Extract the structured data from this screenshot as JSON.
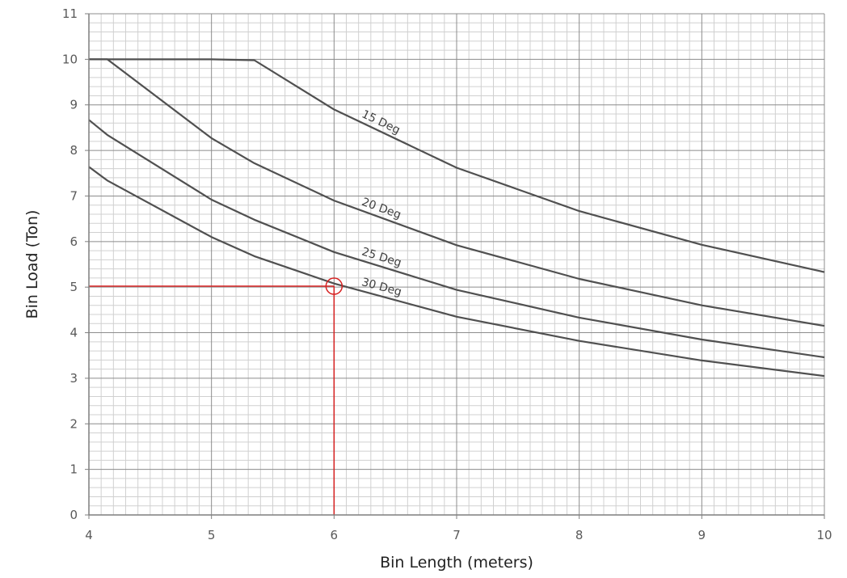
{
  "chart_data": {
    "type": "line",
    "title": "",
    "xlabel": "Bin Length (meters)",
    "ylabel": "Bin Load (Ton)",
    "xlim": [
      4,
      10
    ],
    "ylim": [
      0,
      11
    ],
    "x_ticks": [
      "4",
      "5",
      "6",
      "7",
      "8",
      "9",
      "10"
    ],
    "y_ticks": [
      "0",
      "1",
      "2",
      "3",
      "4",
      "5",
      "6",
      "7",
      "8",
      "9",
      "10",
      "11"
    ],
    "grid": {
      "major": true,
      "minor": true,
      "x_minor_step": 0.1,
      "y_minor_step": 0.2
    },
    "series": [
      {
        "name": "15 Deg",
        "color": "#505050",
        "x": [
          4.0,
          4.2,
          5.0,
          5.35,
          6.0,
          7.0,
          8.0,
          9.0,
          10.0
        ],
        "y": [
          10.0,
          10.0,
          10.0,
          9.98,
          8.9,
          7.62,
          6.67,
          5.93,
          5.33
        ]
      },
      {
        "name": "20 Deg",
        "color": "#505050",
        "x": [
          4.0,
          4.15,
          5.0,
          5.35,
          6.0,
          7.0,
          8.0,
          9.0,
          10.0
        ],
        "y": [
          10.0,
          10.0,
          8.27,
          7.72,
          6.9,
          5.92,
          5.18,
          4.6,
          4.15
        ]
      },
      {
        "name": "25 Deg",
        "color": "#505050",
        "x": [
          4.0,
          4.15,
          5.0,
          5.35,
          6.0,
          7.0,
          8.0,
          9.0,
          10.0
        ],
        "y": [
          8.67,
          8.34,
          6.92,
          6.48,
          5.77,
          4.94,
          4.33,
          3.85,
          3.46
        ]
      },
      {
        "name": "30 Deg",
        "color": "#505050",
        "x": [
          4.0,
          4.15,
          5.0,
          5.35,
          6.0,
          7.0,
          8.0,
          9.0,
          10.0
        ],
        "y": [
          7.64,
          7.34,
          6.1,
          5.68,
          5.08,
          4.35,
          3.82,
          3.39,
          3.05
        ]
      }
    ],
    "highlight": {
      "x": 6,
      "y": 5.02,
      "color": "#d62020",
      "marker": "circle"
    },
    "colors": {
      "axis": "#7f7f7f",
      "major_grid": "#8c8c8c",
      "minor_grid": "#d0d0d0"
    }
  }
}
